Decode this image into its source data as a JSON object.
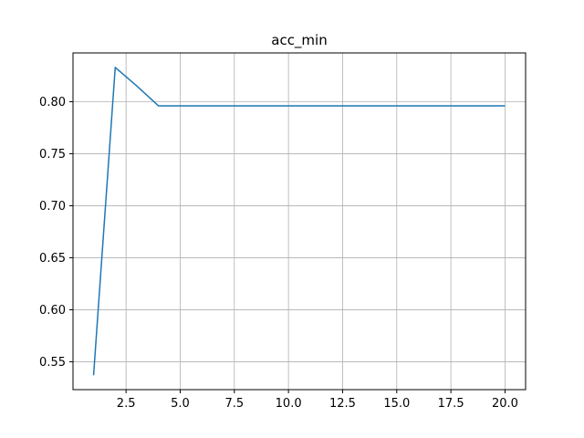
{
  "chart_data": {
    "type": "line",
    "title": "acc_min",
    "xlabel": "",
    "ylabel": "",
    "grid": true,
    "xlim": [
      0.05,
      20.95
    ],
    "ylim": [
      0.5232,
      0.8469
    ],
    "x_ticks": [
      2.5,
      5.0,
      7.5,
      10.0,
      12.5,
      15.0,
      17.5,
      20.0
    ],
    "x_tick_labels": [
      "2.5",
      "5.0",
      "7.5",
      "10.0",
      "12.5",
      "15.0",
      "17.5",
      "20.0"
    ],
    "y_ticks": [
      0.55,
      0.6,
      0.65,
      0.7,
      0.75,
      0.8
    ],
    "y_tick_labels": [
      "0.55",
      "0.60",
      "0.65",
      "0.70",
      "0.75",
      "0.80"
    ],
    "series": [
      {
        "color": "#1f77b4",
        "x": [
          1,
          2,
          3,
          4,
          5,
          6,
          7,
          8,
          9,
          10,
          11,
          12,
          13,
          14,
          15,
          16,
          17,
          18,
          19,
          20
        ],
        "values": [
          0.537,
          0.833,
          0.815,
          0.796,
          0.796,
          0.796,
          0.796,
          0.796,
          0.796,
          0.796,
          0.796,
          0.796,
          0.796,
          0.796,
          0.796,
          0.796,
          0.796,
          0.796,
          0.796,
          0.796
        ]
      }
    ]
  }
}
